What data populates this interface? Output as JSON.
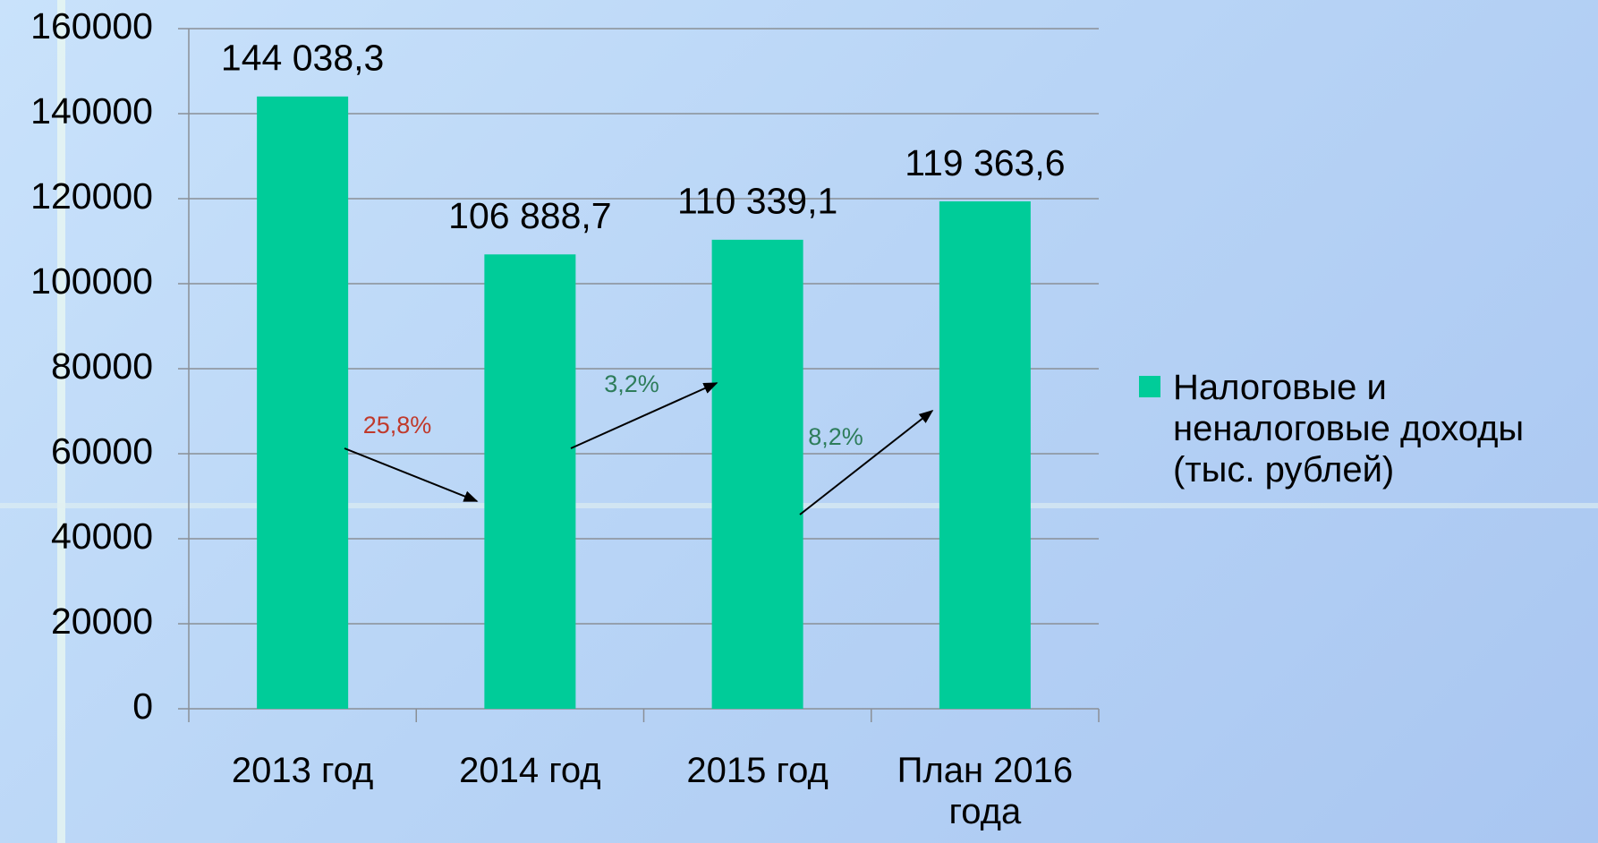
{
  "chart_data": {
    "type": "bar",
    "categories": [
      "2013 год",
      "2014 год",
      "2015 год",
      "План 2016 года"
    ],
    "series": [
      {
        "name": "Налоговые и неналоговые доходы (тыс. рублей)",
        "color": "#00cc99",
        "values": [
          144038.3,
          106888.7,
          110339.1,
          119363.6
        ],
        "value_labels": [
          "144 038,3",
          "106 888,7",
          "110 339,1",
          "119 363,6"
        ]
      }
    ],
    "ylim": [
      0,
      160000
    ],
    "yticks": [
      0,
      20000,
      40000,
      60000,
      80000,
      100000,
      120000,
      140000,
      160000
    ],
    "grid": true,
    "legend": "right",
    "annotations": [
      {
        "text": "25,8%",
        "color": "#c0392b"
      },
      {
        "text": "3,2%",
        "color": "#2e7d5b"
      },
      {
        "text": "8,2%",
        "color": "#2e7d5b"
      }
    ]
  }
}
